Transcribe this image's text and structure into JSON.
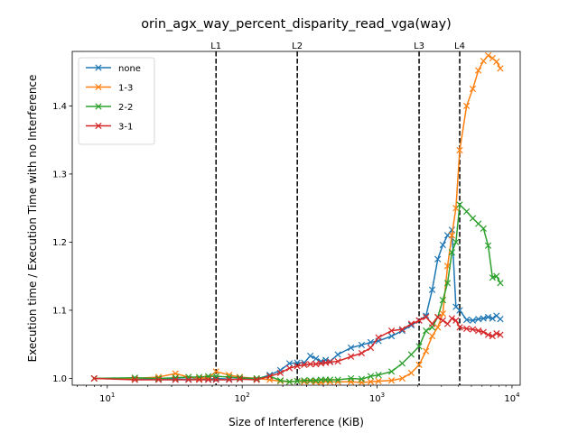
{
  "chart_data": {
    "type": "line",
    "title": "orin_agx_way_percent_disparity_read_vga(way)",
    "xlabel": "Size of Interference (KiB)",
    "ylabel": "Execution time / Execution Time with no Interference",
    "xscale": "log",
    "xlim": [
      5.5,
      11500
    ],
    "ylim": [
      0.99,
      1.48
    ],
    "x_ticks": [
      {
        "value": 10,
        "base": "10",
        "exp": "1"
      },
      {
        "value": 100,
        "base": "10",
        "exp": "2"
      },
      {
        "value": 1000,
        "base": "10",
        "exp": "3"
      },
      {
        "value": 10000,
        "base": "10",
        "exp": "4"
      }
    ],
    "y_ticks": [
      1.0,
      1.1,
      1.2,
      1.3,
      1.4
    ],
    "y_tick_labels": [
      "1.0",
      "1.1",
      "1.2",
      "1.3",
      "1.4"
    ],
    "cache_lines": [
      {
        "label": "L1",
        "x": 64
      },
      {
        "label": "L2",
        "x": 256
      },
      {
        "label": "L3",
        "x": 2048
      },
      {
        "label": "L4",
        "x": 4096
      }
    ],
    "legend_position": "top-left",
    "marker": "x",
    "series": [
      {
        "name": "none",
        "color": "#1f77b4",
        "points": [
          [
            8,
            1.0
          ],
          [
            16,
            0.999
          ],
          [
            24,
            0.999
          ],
          [
            32,
            0.999
          ],
          [
            40,
            0.999
          ],
          [
            48,
            0.999
          ],
          [
            56,
            0.999
          ],
          [
            64,
            1.0
          ],
          [
            80,
            0.999
          ],
          [
            96,
            0.999
          ],
          [
            128,
            0.999
          ],
          [
            160,
            1.005
          ],
          [
            192,
            1.012
          ],
          [
            224,
            1.022
          ],
          [
            256,
            1.023
          ],
          [
            288,
            1.023
          ],
          [
            320,
            1.033
          ],
          [
            352,
            1.029
          ],
          [
            384,
            1.025
          ],
          [
            416,
            1.027
          ],
          [
            448,
            1.025
          ],
          [
            512,
            1.035
          ],
          [
            640,
            1.045
          ],
          [
            768,
            1.049
          ],
          [
            896,
            1.053
          ],
          [
            1024,
            1.055
          ],
          [
            1280,
            1.062
          ],
          [
            1536,
            1.07
          ],
          [
            1792,
            1.078
          ],
          [
            2048,
            1.085
          ],
          [
            2304,
            1.092
          ],
          [
            2560,
            1.13
          ],
          [
            2816,
            1.175
          ],
          [
            3072,
            1.196
          ],
          [
            3328,
            1.21
          ],
          [
            3584,
            1.218
          ],
          [
            3840,
            1.105
          ],
          [
            4096,
            1.1
          ],
          [
            4608,
            1.086
          ],
          [
            5120,
            1.085
          ],
          [
            5632,
            1.087
          ],
          [
            6144,
            1.088
          ],
          [
            6656,
            1.09
          ],
          [
            7168,
            1.088
          ],
          [
            7680,
            1.092
          ],
          [
            8192,
            1.087
          ]
        ]
      },
      {
        "name": "1-3",
        "color": "#ff7f0e",
        "points": [
          [
            8,
            1.0
          ],
          [
            16,
            1.0
          ],
          [
            24,
            1.002
          ],
          [
            32,
            1.007
          ],
          [
            40,
            1.002
          ],
          [
            48,
            1.0
          ],
          [
            56,
            1.001
          ],
          [
            64,
            1.01
          ],
          [
            80,
            1.005
          ],
          [
            96,
            1.002
          ],
          [
            128,
            1.0
          ],
          [
            160,
            0.998
          ],
          [
            192,
            0.996
          ],
          [
            224,
            0.995
          ],
          [
            256,
            0.996
          ],
          [
            288,
            0.995
          ],
          [
            320,
            0.996
          ],
          [
            352,
            0.995
          ],
          [
            384,
            0.994
          ],
          [
            416,
            0.996
          ],
          [
            448,
            0.995
          ],
          [
            512,
            0.995
          ],
          [
            640,
            0.995
          ],
          [
            768,
            0.994
          ],
          [
            896,
            0.995
          ],
          [
            1024,
            0.996
          ],
          [
            1280,
            0.997
          ],
          [
            1536,
            1.0
          ],
          [
            1792,
            1.008
          ],
          [
            2048,
            1.02
          ],
          [
            2304,
            1.04
          ],
          [
            2560,
            1.062
          ],
          [
            2816,
            1.075
          ],
          [
            3072,
            1.095
          ],
          [
            3328,
            1.165
          ],
          [
            3584,
            1.21
          ],
          [
            3840,
            1.25
          ],
          [
            4096,
            1.335
          ],
          [
            4608,
            1.4
          ],
          [
            5120,
            1.425
          ],
          [
            5632,
            1.452
          ],
          [
            6144,
            1.466
          ],
          [
            6656,
            1.474
          ],
          [
            7168,
            1.47
          ],
          [
            7680,
            1.465
          ],
          [
            8192,
            1.455
          ]
        ]
      },
      {
        "name": "2-2",
        "color": "#2ca02c",
        "points": [
          [
            8,
            1.0
          ],
          [
            16,
            1.001
          ],
          [
            24,
            1.0
          ],
          [
            32,
            1.001
          ],
          [
            40,
            1.002
          ],
          [
            48,
            1.002
          ],
          [
            56,
            1.003
          ],
          [
            64,
            1.003
          ],
          [
            80,
            1.002
          ],
          [
            96,
            1.001
          ],
          [
            128,
            1.0
          ],
          [
            160,
            1.003
          ],
          [
            192,
            0.997
          ],
          [
            224,
            0.995
          ],
          [
            256,
            0.996
          ],
          [
            288,
            0.997
          ],
          [
            320,
            0.997
          ],
          [
            352,
            0.997
          ],
          [
            384,
            0.998
          ],
          [
            416,
            0.998
          ],
          [
            448,
            0.998
          ],
          [
            512,
            0.998
          ],
          [
            640,
            1.0
          ],
          [
            768,
            0.999
          ],
          [
            896,
            1.003
          ],
          [
            1024,
            1.005
          ],
          [
            1280,
            1.01
          ],
          [
            1536,
            1.022
          ],
          [
            1792,
            1.035
          ],
          [
            2048,
            1.047
          ],
          [
            2304,
            1.07
          ],
          [
            2560,
            1.075
          ],
          [
            2816,
            1.09
          ],
          [
            3072,
            1.115
          ],
          [
            3328,
            1.14
          ],
          [
            3584,
            1.185
          ],
          [
            3840,
            1.2
          ],
          [
            4096,
            1.255
          ],
          [
            4608,
            1.245
          ],
          [
            5120,
            1.235
          ],
          [
            5632,
            1.227
          ],
          [
            6144,
            1.22
          ],
          [
            6656,
            1.195
          ],
          [
            7168,
            1.148
          ],
          [
            7680,
            1.15
          ],
          [
            8192,
            1.14
          ]
        ]
      },
      {
        "name": "3-1",
        "color": "#d62728",
        "points": [
          [
            8,
            1.0
          ],
          [
            16,
            0.998
          ],
          [
            24,
            0.998
          ],
          [
            32,
            0.998
          ],
          [
            40,
            0.998
          ],
          [
            48,
            0.998
          ],
          [
            56,
            0.998
          ],
          [
            64,
            0.998
          ],
          [
            80,
            0.998
          ],
          [
            96,
            0.999
          ],
          [
            128,
            0.998
          ],
          [
            160,
            1.003
          ],
          [
            192,
            1.008
          ],
          [
            224,
            1.015
          ],
          [
            256,
            1.018
          ],
          [
            288,
            1.02
          ],
          [
            320,
            1.021
          ],
          [
            352,
            1.021
          ],
          [
            384,
            1.022
          ],
          [
            416,
            1.023
          ],
          [
            448,
            1.024
          ],
          [
            512,
            1.025
          ],
          [
            640,
            1.032
          ],
          [
            768,
            1.037
          ],
          [
            896,
            1.045
          ],
          [
            1024,
            1.06
          ],
          [
            1280,
            1.07
          ],
          [
            1536,
            1.072
          ],
          [
            1792,
            1.08
          ],
          [
            2048,
            1.085
          ],
          [
            2304,
            1.09
          ],
          [
            2560,
            1.08
          ],
          [
            2816,
            1.09
          ],
          [
            3072,
            1.085
          ],
          [
            3328,
            1.08
          ],
          [
            3584,
            1.088
          ],
          [
            3840,
            1.085
          ],
          [
            4096,
            1.075
          ],
          [
            4608,
            1.073
          ],
          [
            5120,
            1.072
          ],
          [
            5632,
            1.07
          ],
          [
            6144,
            1.068
          ],
          [
            6656,
            1.064
          ],
          [
            7168,
            1.062
          ],
          [
            7680,
            1.066
          ],
          [
            8192,
            1.064
          ]
        ]
      }
    ]
  }
}
